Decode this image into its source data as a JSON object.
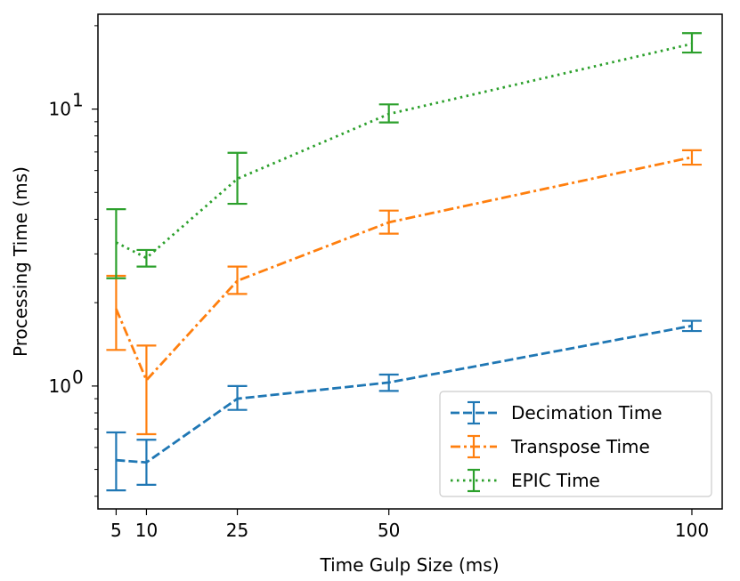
{
  "chart_data": {
    "type": "line",
    "xlabel": "Time Gulp Size (ms)",
    "ylabel": "Processing Time (ms)",
    "x": [
      5,
      10,
      25,
      50,
      100
    ],
    "xticks": [
      5,
      10,
      25,
      50,
      100
    ],
    "xlim": [
      2.0,
      105.0
    ],
    "yscale": "log",
    "ylim": [
      0.36,
      22.0
    ],
    "yticks": [
      {
        "value": 1,
        "label_base": "10",
        "label_exp": "0"
      },
      {
        "value": 10,
        "label_base": "10",
        "label_exp": "1"
      }
    ],
    "grid": false,
    "legend_position": "lower-right",
    "series": [
      {
        "name": "Decimation Time",
        "color": "#1f77b4",
        "linestyle": "dashed",
        "values": [
          0.54,
          0.53,
          0.9,
          1.03,
          1.65
        ],
        "errors": [
          [
            0.42,
            0.68
          ],
          [
            0.44,
            0.64
          ],
          [
            0.82,
            1.0
          ],
          [
            0.96,
            1.1
          ],
          [
            1.58,
            1.72
          ]
        ]
      },
      {
        "name": "Transpose Time",
        "color": "#ff7f0e",
        "linestyle": "dashdot",
        "values": [
          1.9,
          1.05,
          2.4,
          3.9,
          6.7
        ],
        "errors": [
          [
            1.35,
            2.5
          ],
          [
            0.67,
            1.4
          ],
          [
            2.15,
            2.7
          ],
          [
            3.55,
            4.3
          ],
          [
            6.3,
            7.1
          ]
        ]
      },
      {
        "name": "EPIC Time",
        "color": "#2ca02c",
        "linestyle": "dotted",
        "values": [
          3.3,
          2.9,
          5.6,
          9.6,
          17.2
        ],
        "errors": [
          [
            2.45,
            4.35
          ],
          [
            2.7,
            3.1
          ],
          [
            4.55,
            6.95
          ],
          [
            8.95,
            10.4
          ],
          [
            16.0,
            18.8
          ]
        ]
      }
    ]
  }
}
